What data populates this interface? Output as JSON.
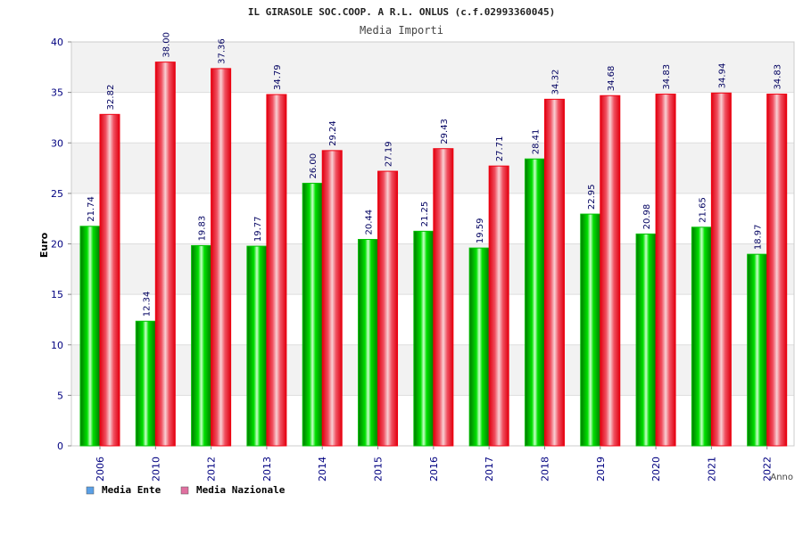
{
  "chart_data": {
    "type": "bar",
    "title": "IL GIRASOLE SOC.COOP. A R.L. ONLUS (c.f.02993360045)",
    "subtitle": "Media Importi",
    "ylabel": "Euro",
    "xlabel": "Anno",
    "ylim": [
      0,
      40
    ],
    "yticks": [
      "0",
      "5",
      "10",
      "15",
      "20",
      "25",
      "30",
      "35",
      "40"
    ],
    "categories": [
      "2006",
      "2010",
      "2012",
      "2013",
      "2014",
      "2015",
      "2016",
      "2017",
      "2018",
      "2019",
      "2020",
      "2021",
      "2022"
    ],
    "series": [
      {
        "name": "Media Ente",
        "color": "#00c000",
        "legend_color": "#5aa0e6",
        "values": [
          21.74,
          12.34,
          19.83,
          19.77,
          26.0,
          20.44,
          21.25,
          19.59,
          28.41,
          22.95,
          20.98,
          21.65,
          18.97
        ],
        "labels": [
          "21.74",
          "12.34",
          "19.83",
          "19.77",
          "26.00",
          "20.44",
          "21.25",
          "19.59",
          "28.41",
          "22.95",
          "20.98",
          "21.65",
          "18.97"
        ]
      },
      {
        "name": "Media Nazionale",
        "color": "#f00010",
        "legend_color": "#e070a0",
        "values": [
          32.82,
          38.0,
          37.36,
          34.79,
          29.24,
          27.19,
          29.43,
          27.71,
          34.32,
          34.68,
          34.83,
          34.94,
          34.83
        ],
        "labels": [
          "32.82",
          "38.00",
          "37.36",
          "34.79",
          "29.24",
          "27.19",
          "29.43",
          "27.71",
          "34.32",
          "34.68",
          "34.83",
          "34.94",
          "34.83"
        ]
      }
    ],
    "grid": true,
    "legend_position": "bottom-left"
  }
}
